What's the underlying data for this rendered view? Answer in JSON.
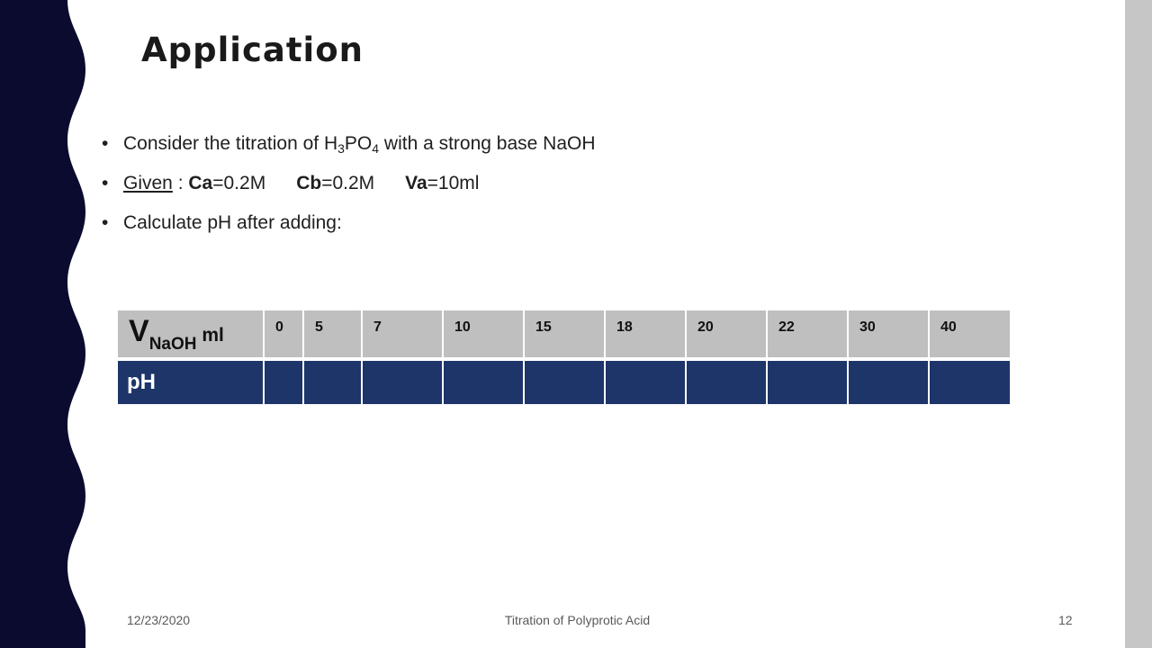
{
  "slide": {
    "title": "Application",
    "bullet1": {
      "pre": "Consider the titration of H",
      "sub1": "3",
      "mid": "PO",
      "sub2": "4",
      "post": " with a strong base NaOH"
    },
    "bullet2": {
      "given": "Given",
      "colon": " : ",
      "ca_label": "Ca",
      "ca_value": "=0.2M",
      "cb_label": "Cb",
      "cb_value": "=0.2M",
      "va_label": "Va",
      "va_value": "=10ml"
    },
    "bullet3": "Calculate pH after adding:"
  },
  "table": {
    "row1_label": {
      "v": "V",
      "sub": "NaOH",
      "unit": " ml"
    },
    "volumes": [
      "0",
      "5",
      "7",
      "10",
      "15",
      "18",
      "20",
      "22",
      "30",
      "40"
    ],
    "row2_label": "pH"
  },
  "footer": {
    "date": "12/23/2020",
    "center": "Titration of Polyprotic Acid",
    "page": "12"
  },
  "colors": {
    "wave": "#0a0b2e",
    "table_header": "#bfbfbf",
    "table_row": "#1e3569",
    "right_bar": "#c6c6c6"
  }
}
